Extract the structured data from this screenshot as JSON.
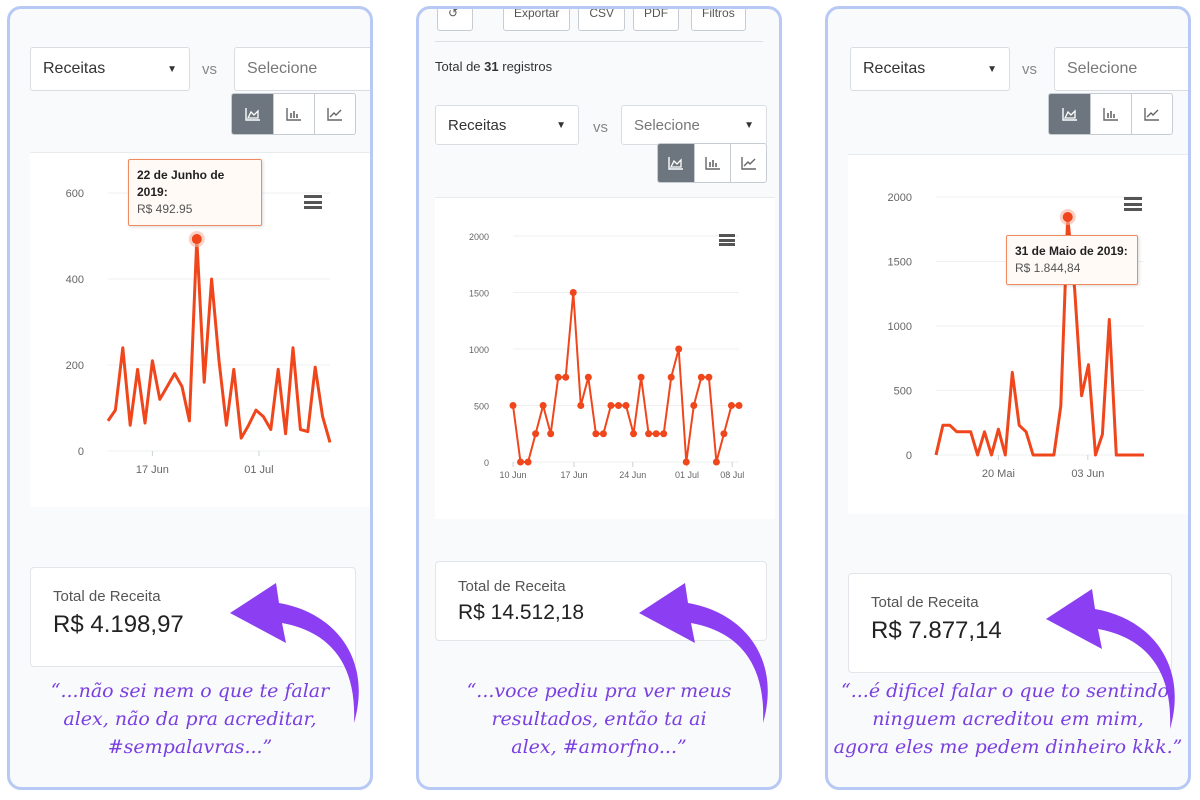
{
  "colors": {
    "accent": "#f0461c",
    "quote": "#7a3fe0",
    "arrow": "#8b3ef2",
    "frame": "#b7c9f4",
    "tooltip_border": "#f08a60"
  },
  "common": {
    "select_left": "Receitas",
    "vs": "vs",
    "select_right": "Selecione",
    "chart_buttons": [
      {
        "icon": "area-chart-icon"
      },
      {
        "icon": "bar-chart-icon"
      },
      {
        "icon": "line-chart-icon"
      }
    ],
    "menu_icon": "hamburger-menu-icon",
    "total_label": "Total de Receita"
  },
  "panel1": {
    "tooltip_title": "22 de Junho de 2019:",
    "tooltip_value": "R$ 492.95",
    "total_value": "R$ 4.198,97",
    "quote": [
      "“...não sei nem o que te falar",
      "alex, não da pra acreditar,",
      "#sempalavras...”"
    ]
  },
  "panel2": {
    "top_buttons": [
      "Exportar",
      "CSV",
      "PDF",
      "Filtros"
    ],
    "registros_prefix": "Total de ",
    "registros_count": "31",
    "registros_suffix": " registros",
    "total_value": "R$ 14.512,18",
    "quote": [
      "“...voce pediu pra ver meus",
      "resultados, então ta ai",
      "alex, #amorfno...”"
    ]
  },
  "panel3": {
    "tooltip_title": "31 de Maio de 2019:",
    "tooltip_value": "R$ 1.844,84",
    "total_value": "R$ 7.877,14",
    "quote": [
      "“...é dificel falar o que to sentindo,",
      "ninguem acreditou em mim,",
      "agora eles me pedem dinheiro kkk.”"
    ]
  },
  "chart_data": [
    {
      "type": "line",
      "yticks": [
        0,
        200,
        400,
        600
      ],
      "ylim": [
        0,
        600
      ],
      "xticks": [
        "17 Jun",
        "01 Jul"
      ],
      "values": [
        70,
        95,
        240,
        60,
        190,
        65,
        210,
        120,
        150,
        180,
        150,
        70,
        492.95,
        160,
        400,
        210,
        60,
        190,
        30,
        60,
        95,
        80,
        50,
        190,
        40,
        240,
        50,
        45,
        195,
        80,
        20
      ]
    },
    {
      "type": "line",
      "yticks": [
        0,
        500,
        1000,
        1500,
        2000
      ],
      "ylim": [
        0,
        2000
      ],
      "xticks": [
        "10 Jun",
        "17 Jun",
        "24 Jun",
        "01 Jul",
        "08 Jul"
      ],
      "values": [
        500,
        0,
        0,
        250,
        500,
        250,
        750,
        750,
        1500,
        500,
        750,
        250,
        250,
        500,
        500,
        500,
        250,
        750,
        250,
        250,
        250,
        750,
        1000,
        0,
        500,
        750,
        750,
        0,
        250,
        500,
        500
      ]
    },
    {
      "type": "line",
      "yticks": [
        0,
        500,
        1000,
        1500,
        2000
      ],
      "ylim": [
        0,
        2000
      ],
      "xticks": [
        "20 Mai",
        "03 Jun"
      ],
      "values": [
        0,
        230,
        230,
        180,
        180,
        180,
        0,
        180,
        0,
        200,
        0,
        640,
        230,
        180,
        0,
        0,
        0,
        0,
        380,
        1844.84,
        1280,
        460,
        700,
        0,
        160,
        1050,
        0,
        0,
        0,
        0,
        0
      ]
    }
  ]
}
